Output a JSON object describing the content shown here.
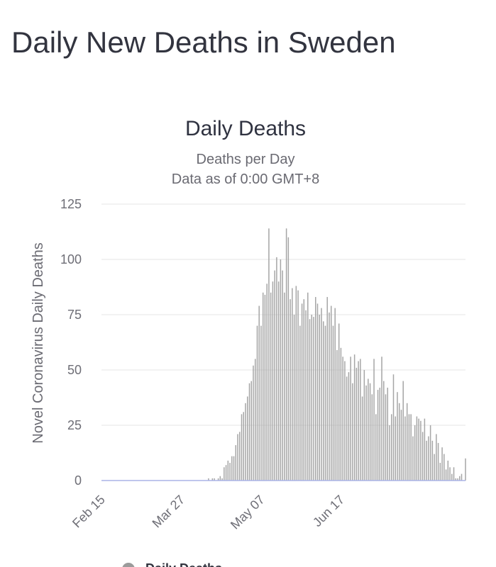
{
  "page": {
    "title": "Daily New Deaths in Sweden"
  },
  "chart_data": {
    "type": "bar",
    "title": "Daily Deaths",
    "subtitle": [
      "Deaths per Day",
      "Data as of 0:00 GMT+8"
    ],
    "xlabel": "",
    "ylabel": "Novel Coronavirus Daily Deaths",
    "ylim": [
      0,
      125
    ],
    "yticks": [
      0,
      25,
      50,
      75,
      100,
      125
    ],
    "xtick_labels": [
      "Feb 15",
      "Mar 27",
      "May 07",
      "Jun 17"
    ],
    "xtick_indices": [
      0,
      41,
      82,
      123
    ],
    "grid": true,
    "legend": {
      "position": "bottom",
      "entries": [
        "Daily Deaths"
      ]
    },
    "colors": {
      "bars": "#a6a6a6",
      "baseline": "#aab4e6",
      "grid": "#e4e4e4"
    },
    "series": [
      {
        "name": "Daily Deaths",
        "values": [
          0,
          0,
          0,
          0,
          0,
          0,
          0,
          0,
          0,
          0,
          0,
          0,
          0,
          0,
          0,
          0,
          0,
          0,
          0,
          0,
          0,
          0,
          0,
          0,
          0,
          0,
          0,
          0,
          0,
          0,
          0,
          0,
          0,
          0,
          0,
          0,
          0,
          0,
          0,
          0,
          0,
          0,
          0,
          0,
          0,
          0,
          0,
          0,
          0,
          0,
          0,
          0,
          0,
          0,
          0,
          1,
          0,
          1,
          1,
          0,
          1,
          2,
          1,
          6,
          7,
          9,
          8,
          11,
          11,
          16,
          21,
          22,
          30,
          31,
          35,
          38,
          44,
          45,
          52,
          55,
          70,
          79,
          70,
          85,
          84,
          89,
          114,
          85,
          90,
          95,
          101,
          90,
          100,
          95,
          85,
          114,
          110,
          82,
          87,
          75,
          88,
          86,
          70,
          80,
          82,
          77,
          85,
          73,
          75,
          74,
          83,
          80,
          75,
          78,
          72,
          70,
          83,
          76,
          79,
          70,
          78,
          59,
          71,
          60,
          56,
          54,
          47,
          49,
          56,
          44,
          57,
          51,
          54,
          55,
          38,
          50,
          43,
          46,
          44,
          39,
          55,
          30,
          41,
          42,
          56,
          45,
          39,
          42,
          25,
          30,
          48,
          29,
          40,
          35,
          32,
          45,
          29,
          35,
          30,
          30,
          20,
          25,
          29,
          28,
          27,
          22,
          28,
          18,
          20,
          25,
          18,
          12,
          21,
          17,
          8,
          15,
          12,
          5,
          9,
          6,
          3,
          6,
          1,
          1,
          2,
          3,
          0,
          10
        ]
      }
    ]
  }
}
